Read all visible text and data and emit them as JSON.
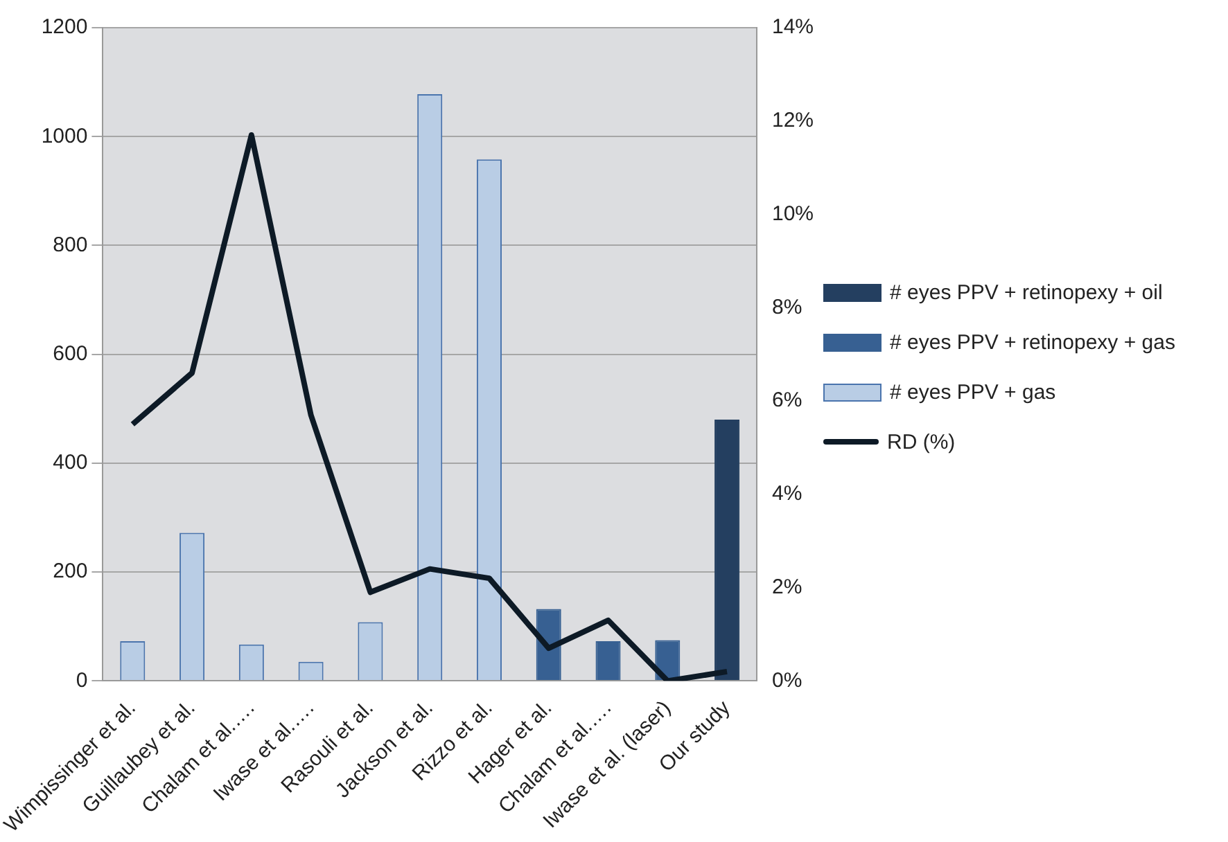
{
  "chart_data": {
    "type": "bar",
    "stacked": true,
    "categories": [
      "Wimpissinger et al.",
      "Guillaubey et al.",
      "Chalam et al.….",
      "Iwase et al.….",
      "Rasouli et al.",
      "Jackson et al.",
      "Rizzo et al.",
      "Hager et al.",
      "Chalam et al.….",
      "Iwase et al. (laser)",
      "Our study"
    ],
    "series": [
      {
        "name": "# eyes PPV + gas",
        "color": "#b9cde5",
        "values": [
          73,
          272,
          67,
          35,
          108,
          1078,
          958,
          null,
          null,
          null,
          null
        ]
      },
      {
        "name": "# eyes PPV + retinopexy + gas",
        "color": "#376092",
        "values": [
          null,
          null,
          null,
          null,
          null,
          null,
          null,
          132,
          73,
          75,
          null
        ]
      },
      {
        "name": "# eyes PPV + retinopexy + oil",
        "color": "#243f60",
        "values": [
          null,
          null,
          null,
          null,
          null,
          null,
          null,
          null,
          null,
          null,
          480
        ]
      },
      {
        "name": "RD (%)",
        "type": "line",
        "axis": "y2",
        "color": "#0d1a26",
        "marker": "none",
        "values": [
          5.5,
          6.6,
          11.7,
          5.7,
          1.9,
          2.4,
          2.2,
          0.7,
          1.3,
          0,
          0.2
        ]
      }
    ],
    "ylim": [
      0,
      1200
    ],
    "yticks": [
      0,
      200,
      400,
      600,
      800,
      1000,
      1200
    ],
    "y2lim": [
      0,
      14
    ],
    "y2ticks": [
      {
        "value": 0,
        "label": "0%"
      },
      {
        "value": 2,
        "label": "2%"
      },
      {
        "value": 4,
        "label": "4%"
      },
      {
        "value": 6,
        "label": "6%"
      },
      {
        "value": 8,
        "label": "8%"
      },
      {
        "value": 10,
        "label": "10%"
      },
      {
        "value": 12,
        "label": "12%"
      },
      {
        "value": 14,
        "label": "14%"
      }
    ],
    "grid": "y",
    "legend": "right"
  }
}
